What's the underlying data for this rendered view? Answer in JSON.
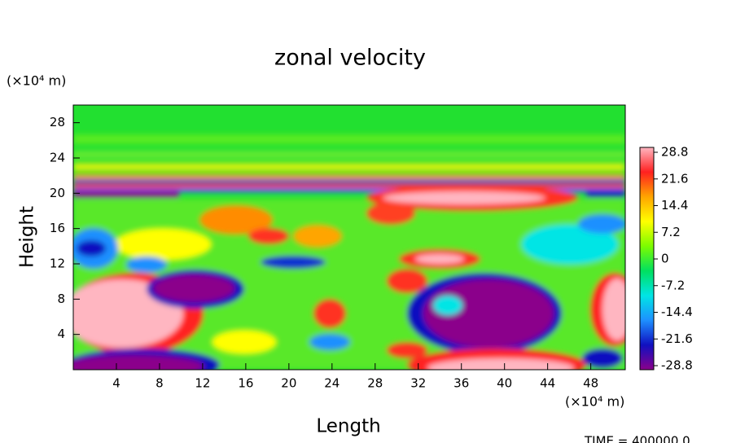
{
  "chart_data": {
    "type": "contour",
    "title": "zonal velocity",
    "x_label": "Length",
    "y_label": "Height",
    "x_unit": "(×10⁴ m)",
    "y_unit": "(×10⁴ m)",
    "footer": "TIME = 400000.0",
    "xlim": [
      0,
      51.2
    ],
    "xticks": [
      4,
      8,
      12,
      16,
      20,
      24,
      28,
      32,
      36,
      40,
      44,
      48
    ],
    "ylim": [
      0,
      30
    ],
    "yticks": [
      4,
      8,
      12,
      16,
      20,
      24,
      28
    ],
    "clim": [
      -28.8,
      28.8
    ],
    "cticks": [
      28.8,
      21.6,
      14.4,
      7.2,
      0,
      -7.2,
      -14.4,
      -21.6,
      -28.8
    ],
    "colormap": [
      "#8b008b",
      "#1010c0",
      "#1e90ff",
      "#00e5e5",
      "#00e060",
      "#7cfc00",
      "#ffff00",
      "#ffa500",
      "#ff2020",
      "#ffb6c1"
    ]
  }
}
